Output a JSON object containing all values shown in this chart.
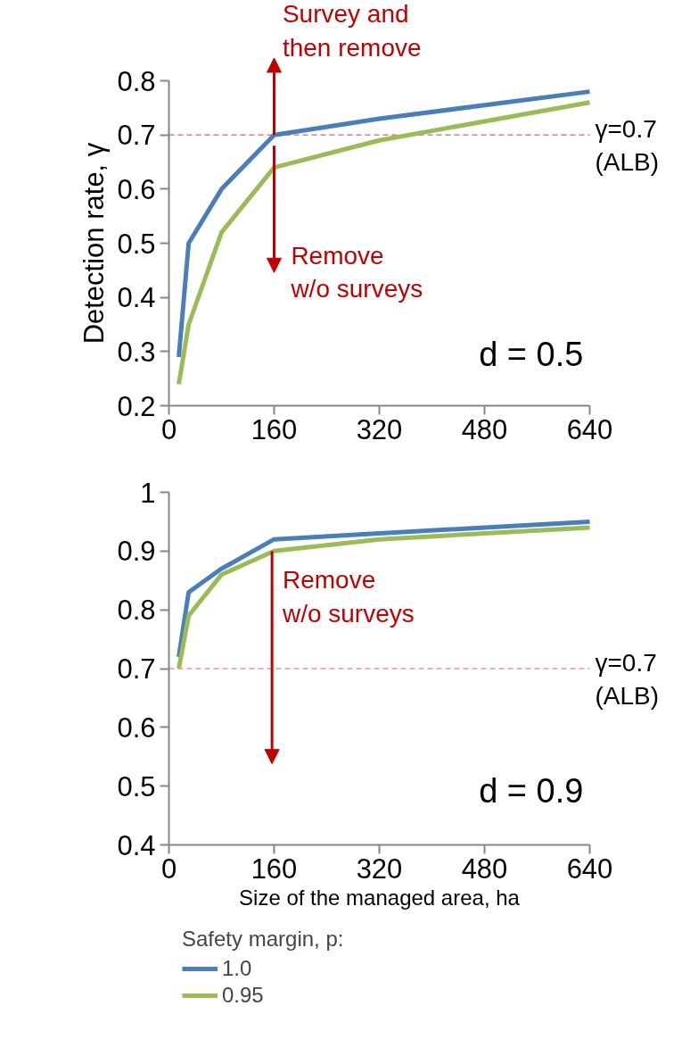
{
  "chart_data": [
    {
      "type": "line",
      "ylabel": "Detection rate, γ",
      "xlim": [
        0,
        640
      ],
      "xticks": [
        0,
        160,
        320,
        480,
        640
      ],
      "ylim": [
        0.2,
        0.8
      ],
      "yticks": [
        0.2,
        0.3,
        0.4,
        0.5,
        0.6,
        0.7,
        0.8
      ],
      "x": [
        15,
        30,
        80,
        160,
        320,
        640
      ],
      "series": [
        {
          "color": "#4a7ebb",
          "values": [
            0.29,
            0.5,
            0.6,
            0.7,
            0.73,
            0.78
          ]
        },
        {
          "color": "#9bbb59",
          "values": [
            0.24,
            0.35,
            0.52,
            0.64,
            0.69,
            0.76
          ]
        }
      ],
      "ref_lines": [
        {
          "axis": "y",
          "value": 0.7,
          "label": "γ=0.7\n(ALB)",
          "color": "#e06060",
          "line_style": "dashed"
        }
      ],
      "annotations": [
        "Survey and\nthen remove",
        "Remove\nw/o surveys",
        "d = 0.5"
      ],
      "grid": false,
      "legend": false
    },
    {
      "type": "line",
      "xlabel": "Size of the managed area, ha",
      "legend_title": "Safety margin, p:",
      "xlim": [
        0,
        640
      ],
      "xticks": [
        0,
        160,
        320,
        480,
        640
      ],
      "ylim": [
        0.4,
        1
      ],
      "yticks": [
        0.4,
        0.5,
        0.6,
        0.7,
        0.8,
        0.9,
        1
      ],
      "x": [
        15,
        30,
        80,
        160,
        320,
        640
      ],
      "series": [
        {
          "name": "1.0",
          "color": "#4a7ebb",
          "values": [
            0.72,
            0.83,
            0.87,
            0.92,
            0.93,
            0.95
          ]
        },
        {
          "name": "0.95",
          "color": "#9bbb59",
          "values": [
            0.7,
            0.79,
            0.86,
            0.9,
            0.92,
            0.94
          ]
        }
      ],
      "ref_lines": [
        {
          "axis": "y",
          "value": 0.7,
          "label": "γ=0.7\n(ALB)",
          "color": "#e06060",
          "line_style": "dashed"
        }
      ],
      "annotations": [
        "Remove\nw/o surveys",
        "d = 0.9"
      ],
      "grid": false,
      "legend": "bottom"
    }
  ]
}
